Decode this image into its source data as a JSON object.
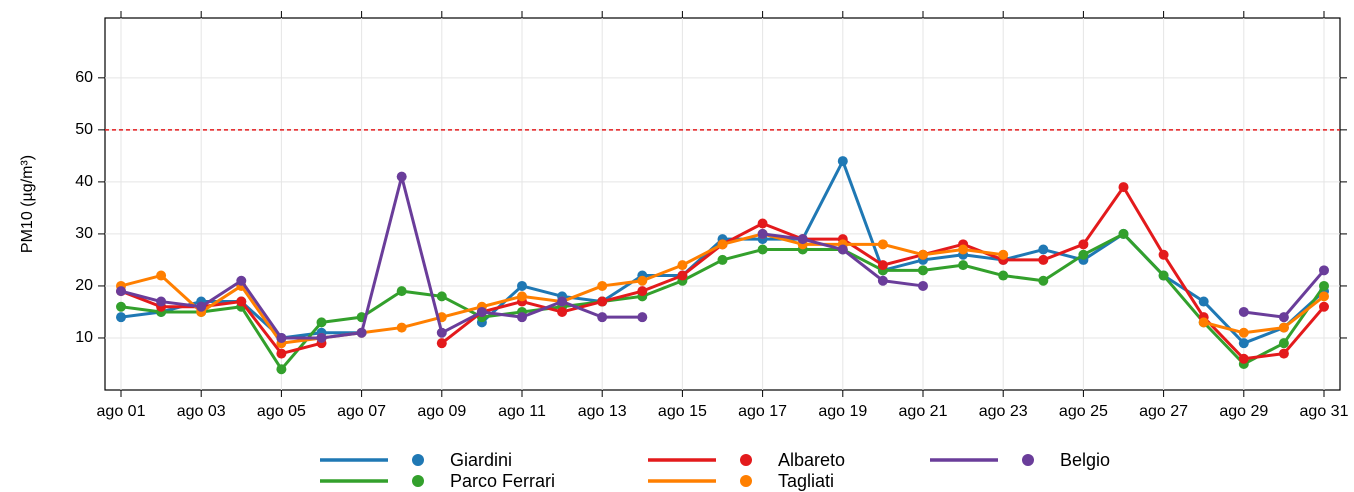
{
  "chart_data": {
    "type": "line",
    "y_label": "PM10 (µg/m³)",
    "categories": [
      "ago 01",
      null,
      "ago 03",
      null,
      "ago 05",
      null,
      "ago 07",
      null,
      "ago 09",
      null,
      "ago 11",
      null,
      "ago 13",
      null,
      "ago 15",
      null,
      "ago 17",
      null,
      "ago 19",
      null,
      "ago 21",
      null,
      "ago 23",
      null,
      "ago 25",
      null,
      "ago 27",
      null,
      "ago 29",
      null,
      "ago 31"
    ],
    "ylim": [
      0,
      71.5
    ],
    "yticks": [
      10,
      20,
      30,
      40,
      50,
      60
    ],
    "grid": true,
    "hline": {
      "value": 50,
      "color": "#e41a1c"
    },
    "series": [
      {
        "name": "Giardini",
        "color": "#1f78b4",
        "values": [
          14,
          15,
          17,
          17,
          10,
          11,
          11,
          null,
          null,
          13,
          20,
          18,
          17,
          22,
          22,
          29,
          29,
          29,
          44,
          23,
          25,
          26,
          25,
          27,
          25,
          30,
          22,
          17,
          9,
          12,
          19
        ]
      },
      {
        "name": "Parco Ferrari",
        "color": "#33a02c",
        "values": [
          16,
          15,
          15,
          16,
          4,
          13,
          14,
          19,
          18,
          14,
          15,
          16,
          17,
          18,
          21,
          25,
          27,
          27,
          27,
          23,
          23,
          24,
          22,
          21,
          26,
          30,
          22,
          13,
          5,
          9,
          20
        ]
      },
      {
        "name": "Albareto",
        "color": "#e31a1c",
        "values": [
          19,
          16,
          16,
          17,
          7,
          9,
          null,
          null,
          9,
          15,
          17,
          15,
          17,
          19,
          22,
          28,
          32,
          29,
          29,
          24,
          26,
          28,
          25,
          25,
          28,
          39,
          26,
          14,
          6,
          7,
          16
        ]
      },
      {
        "name": "Tagliati",
        "color": "#ff7f00",
        "values": [
          20,
          22,
          15,
          20,
          9,
          10,
          11,
          12,
          14,
          16,
          18,
          17,
          20,
          21,
          24,
          28,
          30,
          28,
          28,
          28,
          26,
          27,
          26,
          null,
          null,
          null,
          null,
          13,
          11,
          12,
          18
        ]
      },
      {
        "name": "Belgio",
        "color": "#6a3d9a",
        "values": [
          19,
          17,
          16,
          21,
          10,
          10,
          11,
          41,
          11,
          15,
          14,
          17,
          14,
          14,
          null,
          null,
          30,
          29,
          27,
          21,
          20,
          null,
          null,
          null,
          null,
          null,
          null,
          null,
          15,
          14,
          23
        ]
      }
    ]
  }
}
